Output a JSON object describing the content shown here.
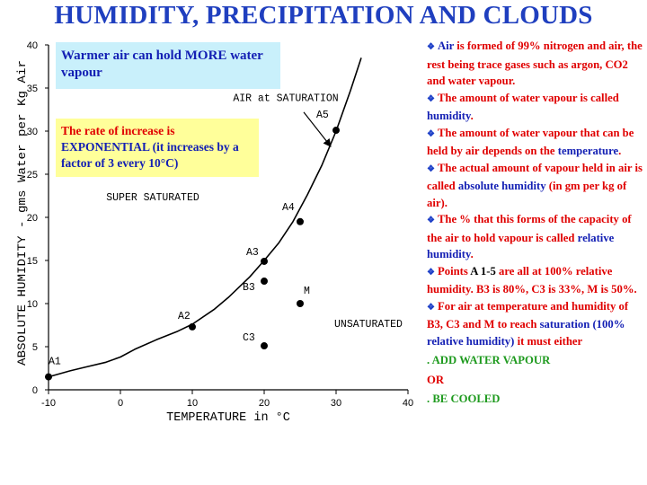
{
  "title": "HUMIDITY, PRECIPITATION AND CLOUDS",
  "callouts": {
    "warmer_air": "Warmer air can hold MORE water vapour",
    "rate_part1": "The rate of increase is",
    "rate_part2": "EXPONENTIAL",
    "rate_part3": " (it increases by a factor of 3 every 10°C)"
  },
  "notes": [
    {
      "type": "bullet",
      "segments": [
        {
          "t": "Air",
          "c": "blue"
        },
        {
          "t": " is formed of 99% nitrogen and air, the rest being trace gases such as argon, CO2 and water vapour.",
          "c": "red"
        }
      ]
    },
    {
      "type": "bullet",
      "segments": [
        {
          "t": "The amount of water vapour is called ",
          "c": "red"
        },
        {
          "t": "humidity",
          "c": "blue"
        },
        {
          "t": ".",
          "c": "red"
        }
      ]
    },
    {
      "type": "bullet",
      "segments": [
        {
          "t": "The amount of water vapour that can  be held by air depends on the ",
          "c": "red"
        },
        {
          "t": "temperature",
          "c": "blue"
        },
        {
          "t": ".",
          "c": "red"
        }
      ]
    },
    {
      "type": "bullet",
      "segments": [
        {
          "t": "The actual amount  of vapour held in air is called ",
          "c": "red"
        },
        {
          "t": "absolute humidity",
          "c": "blue"
        },
        {
          "t": " (in gm per kg of air).",
          "c": "red"
        }
      ]
    },
    {
      "type": "bullet",
      "segments": [
        {
          "t": "The % that this forms of the capacity of the air to hold vapour is called ",
          "c": "red"
        },
        {
          "t": "relative humidity",
          "c": "blue"
        },
        {
          "t": ".",
          "c": "red"
        }
      ]
    },
    {
      "type": "bullet",
      "segments": [
        {
          "t": "Points ",
          "c": "red"
        },
        {
          "t": "A 1-5",
          "c": "dk"
        },
        {
          "t": " are all at 100% relative humidity. B3 is 80%, C3 is 33%, M is 50%.",
          "c": "red"
        }
      ]
    },
    {
      "type": "bullet",
      "segments": [
        {
          "t": "For air at temperature and humidity of B3, C3 and M to reach ",
          "c": "red"
        },
        {
          "t": "saturation (100% relative humidity)",
          "c": "blue"
        },
        {
          "t": " it must either",
          "c": "red"
        }
      ]
    },
    {
      "type": "line",
      "segments": [
        {
          "t": ". ADD WATER VAPOUR",
          "c": "green"
        }
      ]
    },
    {
      "type": "line",
      "segments": [
        {
          "t": "OR",
          "c": "red"
        }
      ]
    },
    {
      "type": "line",
      "segments": [
        {
          "t": ". BE COOLED",
          "c": "green"
        }
      ]
    }
  ],
  "chart_data": {
    "type": "line",
    "xlabel": "TEMPERATURE in °C",
    "ylabel": "ABSOLUTE HUMIDITY - gms Water per Kg Air",
    "xlim": [
      -10,
      40
    ],
    "ylim": [
      0,
      40
    ],
    "x_ticks": [
      "-10",
      "0",
      "10",
      "20",
      "30",
      "40"
    ],
    "y_ticks": [
      "0",
      "5",
      "10",
      "15",
      "20",
      "25",
      "30",
      "35",
      "40"
    ],
    "grid": false,
    "series": [
      {
        "name": "AIR at SATURATION",
        "x": [
          -10,
          -7,
          -5,
          -2,
          0,
          2,
          5,
          8,
          10,
          13,
          15,
          18,
          20,
          22,
          24,
          26,
          28,
          30,
          32,
          33.5
        ],
        "y": [
          1.5,
          2.2,
          2.6,
          3.2,
          3.8,
          4.7,
          5.8,
          6.8,
          7.6,
          9.3,
          10.7,
          13.1,
          15.0,
          17.0,
          19.5,
          22.6,
          26.0,
          30.0,
          34.7,
          38.5
        ]
      }
    ],
    "points": [
      {
        "label": "A1",
        "x": -10,
        "y": 1.5
      },
      {
        "label": "A2",
        "x": 10,
        "y": 7.3
      },
      {
        "label": "A3",
        "x": 20,
        "y": 14.9
      },
      {
        "label": "A4",
        "x": 25,
        "y": 19.5
      },
      {
        "label": "A5",
        "x": 30,
        "y": 30.1
      },
      {
        "label": "B3",
        "x": 20,
        "y": 12.6
      },
      {
        "label": "C3",
        "x": 20,
        "y": 5.1
      },
      {
        "label": "M",
        "x": 25,
        "y": 10.0
      }
    ],
    "annotations": [
      {
        "text": "AIR at SATURATION",
        "x": 23,
        "y": 33.5
      },
      {
        "text": "SUPER SATURATED",
        "x": 4.5,
        "y": 22
      },
      {
        "text": "UNSATURATED",
        "x": 34.5,
        "y": 7.3
      }
    ]
  }
}
